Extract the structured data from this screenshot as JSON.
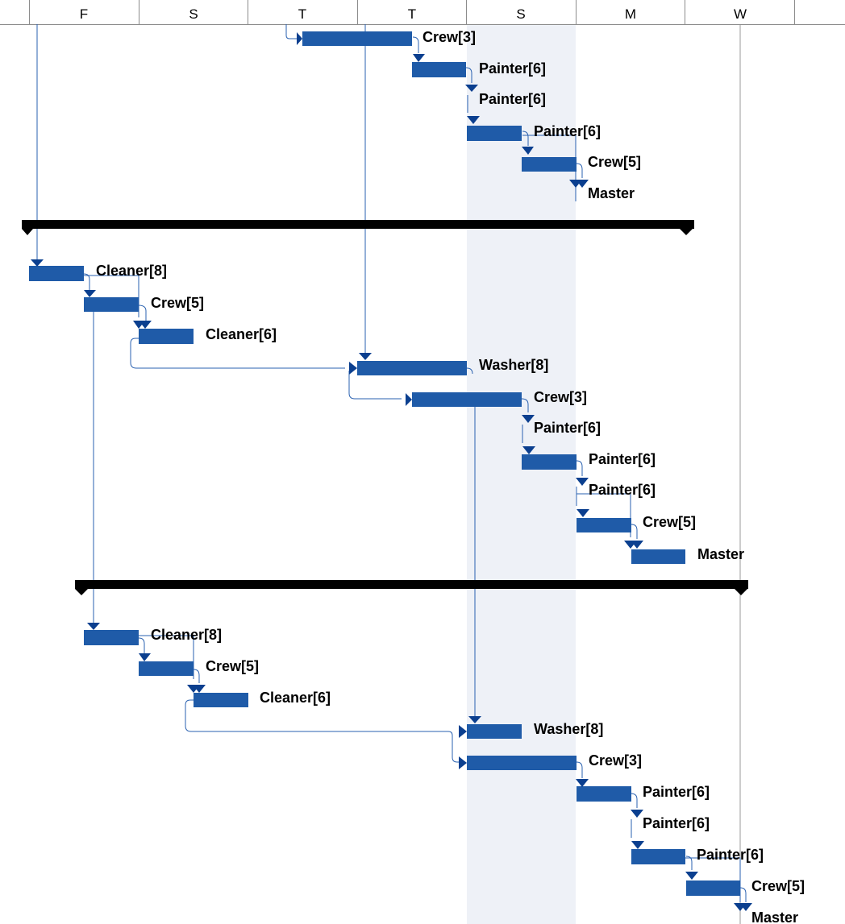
{
  "timescale": {
    "days": [
      "F",
      "S",
      "T",
      "T",
      "S",
      "M",
      "W"
    ]
  },
  "colors": {
    "bar": "#1f5ba8",
    "link": "#2a61b0",
    "summary": "#000000",
    "weekend_shade": "#eef1f7",
    "grid": "#8c8c8c",
    "marker": "#0b3f8f"
  },
  "groups": [
    {
      "summary_present": false,
      "tasks": [
        {
          "label": "Crew[3]"
        },
        {
          "label": "Painter[6]"
        },
        {
          "label": "Painter[6]"
        },
        {
          "label": "Painter[6]"
        },
        {
          "label": "Crew[5]"
        },
        {
          "label": "Master"
        }
      ]
    },
    {
      "summary_present": true,
      "tasks": [
        {
          "label": "Cleaner[8]"
        },
        {
          "label": "Crew[5]"
        },
        {
          "label": "Cleaner[6]"
        },
        {
          "label": "Washer[8]"
        },
        {
          "label": "Crew[3]"
        },
        {
          "label": "Painter[6]"
        },
        {
          "label": "Painter[6]"
        },
        {
          "label": "Painter[6]"
        },
        {
          "label": "Crew[5]"
        },
        {
          "label": "Master"
        }
      ]
    },
    {
      "summary_present": true,
      "tasks": [
        {
          "label": "Cleaner[8]"
        },
        {
          "label": "Crew[5]"
        },
        {
          "label": "Cleaner[6]"
        },
        {
          "label": "Washer[8]"
        },
        {
          "label": "Crew[3]"
        },
        {
          "label": "Painter[6]"
        },
        {
          "label": "Painter[6]"
        },
        {
          "label": "Painter[6]"
        },
        {
          "label": "Crew[5]"
        },
        {
          "label": "Master"
        }
      ]
    }
  ]
}
